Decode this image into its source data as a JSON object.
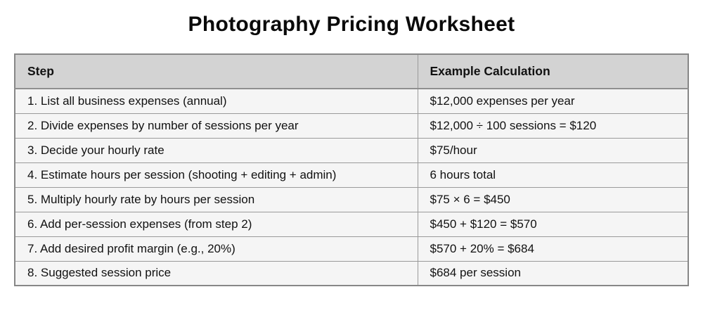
{
  "page": {
    "title": "Photography Pricing Worksheet"
  },
  "table": {
    "columns": [
      {
        "label": "Step"
      },
      {
        "label": "Example Calculation"
      }
    ],
    "rows": [
      {
        "step": "1. List all business expenses (annual)",
        "calc": "$12,000 expenses per year"
      },
      {
        "step": "2. Divide expenses by number of sessions per year",
        "calc": "$12,000 ÷ 100 sessions = $120"
      },
      {
        "step": "3. Decide your hourly rate",
        "calc": "$75/hour"
      },
      {
        "step": "4. Estimate hours per session (shooting + editing + admin)",
        "calc": "6 hours total"
      },
      {
        "step": "5. Multiply hourly rate by hours per session",
        "calc": "$75 × 6 = $450"
      },
      {
        "step": "6. Add per-session expenses (from step 2)",
        "calc": "$450 + $120 = $570"
      },
      {
        "step": "7. Add desired profit margin (e.g., 20%)",
        "calc": "$570 + 20% = $684"
      },
      {
        "step": "8. Suggested session price",
        "calc": "$684 per session"
      }
    ],
    "colors": {
      "header_bg": "#d3d3d3",
      "row_bg": "#f5f5f5",
      "border": "#9a9a9a",
      "outer_border": "#878787",
      "text": "#111111"
    }
  }
}
